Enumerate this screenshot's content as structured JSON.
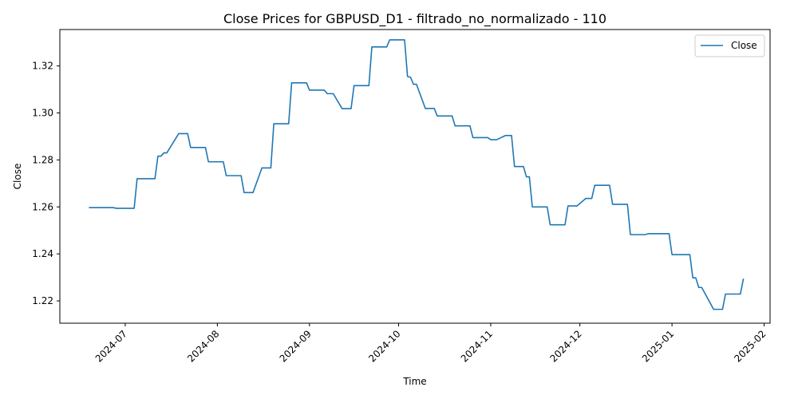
{
  "chart_data": {
    "type": "line",
    "title": "Close Prices for GBPUSD_D1 - filtrado_no_normalizado - 110",
    "xlabel": "Time",
    "ylabel": "Close",
    "legend": {
      "placement": "top-right"
    },
    "grid": false,
    "xlim": [
      "2024-06-09",
      "2025-02-03"
    ],
    "ylim": [
      1.2105,
      1.3355
    ],
    "x_ticks": [
      "2024-07",
      "2024-08",
      "2024-09",
      "2024-10",
      "2024-11",
      "2024-12",
      "2025-01",
      "2025-02"
    ],
    "x_tick_dates": [
      "2024-07-01",
      "2024-08-01",
      "2024-09-01",
      "2024-10-01",
      "2024-11-01",
      "2024-12-01",
      "2025-01-01",
      "2025-02-01"
    ],
    "y_ticks": [
      "1.22",
      "1.24",
      "1.26",
      "1.28",
      "1.30",
      "1.32"
    ],
    "y_tick_values": [
      1.22,
      1.24,
      1.26,
      1.28,
      1.3,
      1.32
    ],
    "series": [
      {
        "name": "Close",
        "color": "#1f77b4",
        "points": [
          [
            "2024-06-19",
            1.2597
          ],
          [
            "2024-06-27",
            1.2597
          ],
          [
            "2024-06-28",
            1.2594
          ],
          [
            "2024-07-04",
            1.2594
          ],
          [
            "2024-07-05",
            1.272
          ],
          [
            "2024-07-11",
            1.272
          ],
          [
            "2024-07-12",
            1.2816
          ],
          [
            "2024-07-13",
            1.2816
          ],
          [
            "2024-07-14",
            1.283
          ],
          [
            "2024-07-15",
            1.283
          ],
          [
            "2024-07-19",
            1.2912
          ],
          [
            "2024-07-22",
            1.2912
          ],
          [
            "2024-07-23",
            1.2853
          ],
          [
            "2024-07-28",
            1.2853
          ],
          [
            "2024-07-29",
            1.2792
          ],
          [
            "2024-08-03",
            1.2792
          ],
          [
            "2024-08-04",
            1.2733
          ],
          [
            "2024-08-09",
            1.2733
          ],
          [
            "2024-08-10",
            1.2661
          ],
          [
            "2024-08-13",
            1.2661
          ],
          [
            "2024-08-16",
            1.2766
          ],
          [
            "2024-08-19",
            1.2766
          ],
          [
            "2024-08-20",
            1.2954
          ],
          [
            "2024-08-25",
            1.2954
          ],
          [
            "2024-08-26",
            1.3128
          ],
          [
            "2024-08-31",
            1.3128
          ],
          [
            "2024-09-01",
            1.3097
          ],
          [
            "2024-09-06",
            1.3097
          ],
          [
            "2024-09-07",
            1.3082
          ],
          [
            "2024-09-09",
            1.3082
          ],
          [
            "2024-09-12",
            1.3018
          ],
          [
            "2024-09-15",
            1.3018
          ],
          [
            "2024-09-16",
            1.3116
          ],
          [
            "2024-09-21",
            1.3116
          ],
          [
            "2024-09-22",
            1.3281
          ],
          [
            "2024-09-27",
            1.3281
          ],
          [
            "2024-09-28",
            1.3311
          ],
          [
            "2024-10-03",
            1.3311
          ],
          [
            "2024-10-04",
            1.3155
          ],
          [
            "2024-10-05",
            1.3152
          ],
          [
            "2024-10-06",
            1.3122
          ],
          [
            "2024-10-07",
            1.3122
          ],
          [
            "2024-10-10",
            1.3019
          ],
          [
            "2024-10-13",
            1.3019
          ],
          [
            "2024-10-14",
            1.2987
          ],
          [
            "2024-10-19",
            1.2987
          ],
          [
            "2024-10-20",
            1.2945
          ],
          [
            "2024-10-25",
            1.2945
          ],
          [
            "2024-10-26",
            1.2895
          ],
          [
            "2024-10-31",
            1.2895
          ],
          [
            "2024-11-01",
            1.2886
          ],
          [
            "2024-11-03",
            1.2886
          ],
          [
            "2024-11-06",
            1.2904
          ],
          [
            "2024-11-08",
            1.2904
          ],
          [
            "2024-11-09",
            1.2772
          ],
          [
            "2024-11-12",
            1.2772
          ],
          [
            "2024-11-13",
            1.2728
          ],
          [
            "2024-11-14",
            1.2728
          ],
          [
            "2024-11-15",
            1.26
          ],
          [
            "2024-11-20",
            1.26
          ],
          [
            "2024-11-21",
            1.2524
          ],
          [
            "2024-11-26",
            1.2524
          ],
          [
            "2024-11-27",
            1.2604
          ],
          [
            "2024-11-30",
            1.2604
          ],
          [
            "2024-12-03",
            1.2636
          ],
          [
            "2024-12-05",
            1.2636
          ],
          [
            "2024-12-06",
            1.2692
          ],
          [
            "2024-12-11",
            1.2692
          ],
          [
            "2024-12-12",
            1.2611
          ],
          [
            "2024-12-17",
            1.2611
          ],
          [
            "2024-12-18",
            1.2482
          ],
          [
            "2024-12-23",
            1.2482
          ],
          [
            "2024-12-24",
            1.2486
          ],
          [
            "2024-12-31",
            1.2486
          ],
          [
            "2025-01-01",
            1.2397
          ],
          [
            "2025-01-07",
            1.2397
          ],
          [
            "2025-01-08",
            1.2298
          ],
          [
            "2025-01-09",
            1.2298
          ],
          [
            "2025-01-10",
            1.2257
          ],
          [
            "2025-01-11",
            1.2257
          ],
          [
            "2025-01-15",
            1.2164
          ],
          [
            "2025-01-18",
            1.2164
          ],
          [
            "2025-01-19",
            1.2229
          ],
          [
            "2025-01-24",
            1.2229
          ],
          [
            "2025-01-25",
            1.2292
          ]
        ]
      }
    ]
  }
}
